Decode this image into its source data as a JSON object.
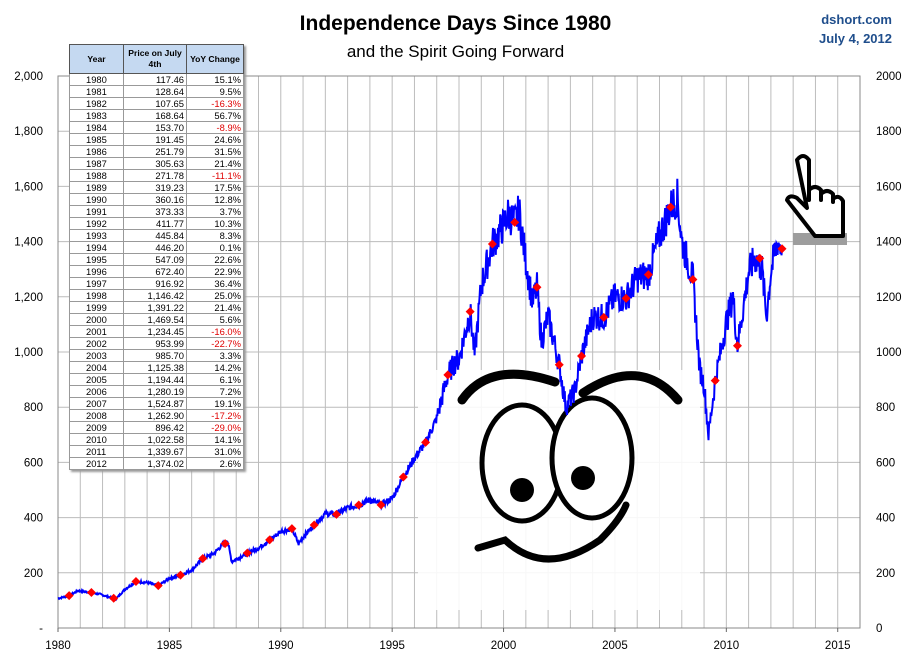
{
  "header": {
    "title": "Independence Days Since 1980",
    "subtitle": "and the Spirit Going Forward",
    "source": "dshort.com",
    "date": "July 4, 2012"
  },
  "colors": {
    "line": "#0000ff",
    "marker": "#ff0000",
    "negative": "#e00000",
    "table_header_bg": "#c5d9f1",
    "source_text": "#1f4e8c"
  },
  "table": {
    "headers": [
      "Year",
      "Price on July 4th",
      "YoY Change"
    ],
    "rows": [
      {
        "year": "1980",
        "price": "117.46",
        "change": "15.1%"
      },
      {
        "year": "1981",
        "price": "128.64",
        "change": "9.5%"
      },
      {
        "year": "1982",
        "price": "107.65",
        "change": "-16.3%"
      },
      {
        "year": "1983",
        "price": "168.64",
        "change": "56.7%"
      },
      {
        "year": "1984",
        "price": "153.70",
        "change": "-8.9%"
      },
      {
        "year": "1985",
        "price": "191.45",
        "change": "24.6%"
      },
      {
        "year": "1986",
        "price": "251.79",
        "change": "31.5%"
      },
      {
        "year": "1987",
        "price": "305.63",
        "change": "21.4%"
      },
      {
        "year": "1988",
        "price": "271.78",
        "change": "-11.1%"
      },
      {
        "year": "1989",
        "price": "319.23",
        "change": "17.5%"
      },
      {
        "year": "1990",
        "price": "360.16",
        "change": "12.8%"
      },
      {
        "year": "1991",
        "price": "373.33",
        "change": "3.7%"
      },
      {
        "year": "1992",
        "price": "411.77",
        "change": "10.3%"
      },
      {
        "year": "1993",
        "price": "445.84",
        "change": "8.3%"
      },
      {
        "year": "1994",
        "price": "446.20",
        "change": "0.1%"
      },
      {
        "year": "1995",
        "price": "547.09",
        "change": "22.6%"
      },
      {
        "year": "1996",
        "price": "672.40",
        "change": "22.9%"
      },
      {
        "year": "1997",
        "price": "916.92",
        "change": "36.4%"
      },
      {
        "year": "1998",
        "price": "1,146.42",
        "change": "25.0%"
      },
      {
        "year": "1999",
        "price": "1,391.22",
        "change": "21.4%"
      },
      {
        "year": "2000",
        "price": "1,469.54",
        "change": "5.6%"
      },
      {
        "year": "2001",
        "price": "1,234.45",
        "change": "-16.0%"
      },
      {
        "year": "2002",
        "price": "953.99",
        "change": "-22.7%"
      },
      {
        "year": "2003",
        "price": "985.70",
        "change": "3.3%"
      },
      {
        "year": "2004",
        "price": "1,125.38",
        "change": "14.2%"
      },
      {
        "year": "2005",
        "price": "1,194.44",
        "change": "6.1%"
      },
      {
        "year": "2006",
        "price": "1,280.19",
        "change": "7.2%"
      },
      {
        "year": "2007",
        "price": "1,524.87",
        "change": "19.1%"
      },
      {
        "year": "2008",
        "price": "1,262.90",
        "change": "-17.2%"
      },
      {
        "year": "2009",
        "price": "896.42",
        "change": "-29.0%"
      },
      {
        "year": "2010",
        "price": "1,022.58",
        "change": "14.1%"
      },
      {
        "year": "2011",
        "price": "1,339.67",
        "change": "31.0%"
      },
      {
        "year": "2012",
        "price": "1,374.02",
        "change": "2.6%"
      }
    ]
  },
  "chart_data": {
    "type": "line",
    "title": "Independence Days Since 1980",
    "subtitle": "and the Spirit Going Forward",
    "xlabel": "",
    "ylabel": "",
    "xlim": [
      1980,
      2016
    ],
    "ylim": [
      0,
      2000
    ],
    "x_ticks": [
      "1980",
      "1985",
      "1990",
      "1995",
      "2000",
      "2005",
      "2010",
      "2015"
    ],
    "x_tick_values": [
      1980,
      1985,
      1990,
      1995,
      2000,
      2005,
      2010,
      2015
    ],
    "y_ticks_left": [
      "-",
      "200",
      "400",
      "600",
      "800",
      "1,000",
      "1,200",
      "1,400",
      "1,600",
      "1,800",
      "2,000"
    ],
    "y_ticks_right": [
      "0",
      "200",
      "400",
      "600",
      "800",
      "1000",
      "1200",
      "1400",
      "1600",
      "1800",
      "2000"
    ],
    "y_tick_values": [
      0,
      200,
      400,
      600,
      800,
      1000,
      1200,
      1400,
      1600,
      1800,
      2000
    ],
    "grid": true,
    "series": [
      {
        "kind": "daily-line",
        "x": [
          1980,
          1980.5,
          1980.9,
          1981.5,
          1981.9,
          1982.5,
          1982.6,
          1983.0,
          1983.5,
          1984.0,
          1984.5,
          1985.0,
          1985.5,
          1986.0,
          1986.5,
          1987.0,
          1987.6,
          1987.8,
          1987.9,
          1988.5,
          1989.0,
          1989.5,
          1990.0,
          1990.5,
          1990.8,
          1991.0,
          1991.5,
          1992.0,
          1992.5,
          1993.0,
          1993.5,
          1994.0,
          1994.5,
          1995.0,
          1995.5,
          1996.0,
          1996.5,
          1997.0,
          1997.5,
          1997.8,
          1998.0,
          1998.5,
          1998.7,
          1999.0,
          1999.5,
          2000.0,
          2000.2,
          2000.5,
          2000.7,
          2001.0,
          2001.3,
          2001.5,
          2001.7,
          2002.0,
          2002.5,
          2002.8,
          2003.2,
          2003.5,
          2004.0,
          2004.5,
          2005.0,
          2005.5,
          2006.0,
          2006.5,
          2007.0,
          2007.5,
          2007.8,
          2008.0,
          2008.5,
          2008.8,
          2009.0,
          2009.2,
          2009.5,
          2010.0,
          2010.3,
          2010.5,
          2011.0,
          2011.3,
          2011.6,
          2011.8,
          2012.0,
          2012.3,
          2012.5
        ],
        "values": [
          107,
          117,
          135,
          128,
          122,
          107,
          105,
          140,
          168,
          165,
          153,
          180,
          191,
          210,
          251,
          270,
          320,
          240,
          245,
          271,
          290,
          319,
          350,
          360,
          305,
          330,
          373,
          415,
          412,
          435,
          446,
          465,
          446,
          470,
          547,
          615,
          672,
          760,
          917,
          960,
          975,
          1146,
          990,
          1240,
          1391,
          1460,
          1500,
          1470,
          1510,
          1330,
          1180,
          1234,
          1040,
          1130,
          954,
          800,
          860,
          986,
          1130,
          1125,
          1200,
          1194,
          1270,
          1280,
          1420,
          1525,
          1560,
          1400,
          1263,
          940,
          880,
          700,
          896,
          1110,
          1200,
          1022,
          1290,
          1340,
          1300,
          1130,
          1290,
          1400,
          1374
        ]
      },
      {
        "kind": "july4-markers",
        "x": [
          1980.5,
          1981.5,
          1982.5,
          1983.5,
          1984.5,
          1985.5,
          1986.5,
          1987.5,
          1988.5,
          1989.5,
          1990.5,
          1991.5,
          1992.5,
          1993.5,
          1994.5,
          1995.5,
          1996.5,
          1997.5,
          1998.5,
          1999.5,
          2000.5,
          2001.5,
          2002.5,
          2003.5,
          2004.5,
          2005.5,
          2006.5,
          2007.5,
          2008.5,
          2009.5,
          2010.5,
          2011.5,
          2012.5
        ],
        "values": [
          117.46,
          128.64,
          107.65,
          168.64,
          153.7,
          191.45,
          251.79,
          305.63,
          271.78,
          319.23,
          360.16,
          373.33,
          411.77,
          445.84,
          446.2,
          547.09,
          672.4,
          916.92,
          1146.42,
          1391.22,
          1469.54,
          1234.45,
          953.99,
          985.7,
          1125.38,
          1194.44,
          1280.19,
          1524.87,
          1262.9,
          896.42,
          1022.58,
          1339.67,
          1374.02
        ]
      }
    ]
  }
}
